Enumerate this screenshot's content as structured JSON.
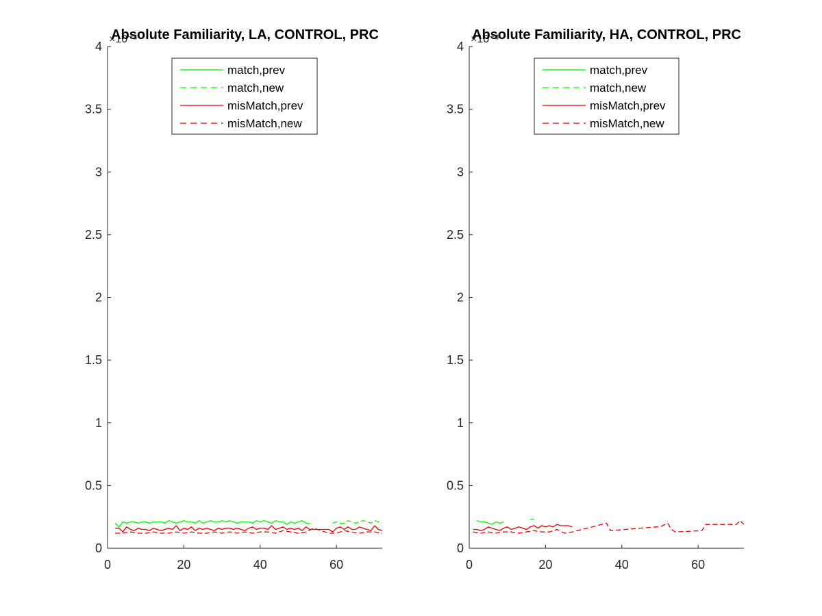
{
  "chart_data": [
    {
      "type": "line",
      "title": "Absolute Familiarity, LA, CONTROL, PRC",
      "xlabel": "",
      "ylabel": "",
      "xlim": [
        0,
        72
      ],
      "ylim": [
        0,
        4
      ],
      "y_exponent_label": "×10⁻³",
      "xticks": [
        "0",
        "20",
        "40",
        "60"
      ],
      "xtick_values": [
        0,
        20,
        40,
        60
      ],
      "yticks": [
        "0",
        "0.5",
        "1",
        "1.5",
        "2",
        "2.5",
        "3",
        "3.5",
        "4"
      ],
      "ytick_values": [
        0,
        0.5,
        1,
        1.5,
        2,
        2.5,
        3,
        3.5,
        4
      ],
      "grid": false,
      "legend_position": "top-center",
      "series": [
        {
          "name": "match,prev",
          "color": "#00ff00",
          "style": "solid",
          "x": [
            2,
            3,
            4,
            5,
            6,
            7,
            8,
            9,
            10,
            11,
            12,
            13,
            14,
            15,
            16,
            17,
            18,
            19,
            20,
            21,
            22,
            23,
            24,
            25,
            26,
            27,
            28,
            29,
            30,
            31,
            32,
            33,
            34,
            35,
            36,
            37,
            38,
            39,
            40,
            41,
            42,
            43,
            44,
            45,
            46,
            47,
            48,
            49,
            50,
            51,
            52,
            53
          ],
          "y": [
            0.2,
            0.17,
            0.21,
            0.2,
            0.21,
            0.21,
            0.2,
            0.21,
            0.21,
            0.2,
            0.21,
            0.21,
            0.21,
            0.2,
            0.22,
            0.21,
            0.2,
            0.21,
            0.22,
            0.21,
            0.21,
            0.2,
            0.22,
            0.2,
            0.21,
            0.22,
            0.21,
            0.21,
            0.22,
            0.21,
            0.22,
            0.21,
            0.2,
            0.21,
            0.21,
            0.21,
            0.2,
            0.22,
            0.21,
            0.22,
            0.21,
            0.2,
            0.22,
            0.21,
            0.21,
            0.19,
            0.21,
            0.2,
            0.21,
            0.22,
            0.2,
            0.2
          ]
        },
        {
          "name": "match,new",
          "color": "#00ff00",
          "style": "dashed",
          "x": [
            59,
            60,
            61,
            62,
            63,
            64,
            65,
            66,
            67,
            68,
            69,
            70,
            71,
            72
          ],
          "y": [
            0.2,
            0.21,
            0.2,
            0.2,
            0.22,
            0.21,
            0.2,
            0.21,
            0.22,
            0.21,
            0.2,
            0.22,
            0.21,
            0.2
          ]
        },
        {
          "name": "misMatch,prev",
          "color": "#e60000",
          "style": "solid",
          "x": [
            2,
            3,
            4,
            5,
            6,
            7,
            8,
            9,
            10,
            11,
            12,
            13,
            14,
            15,
            16,
            17,
            18,
            19,
            20,
            21,
            22,
            23,
            24,
            25,
            26,
            27,
            28,
            29,
            30,
            31,
            32,
            33,
            34,
            35,
            36,
            37,
            38,
            39,
            40,
            41,
            42,
            43,
            44,
            45,
            46,
            47,
            48,
            49,
            50,
            51,
            52,
            53,
            58,
            59,
            60,
            61,
            62,
            63,
            64,
            65,
            66,
            67,
            68,
            69,
            70,
            71,
            72
          ],
          "y": [
            0.16,
            0.16,
            0.13,
            0.17,
            0.15,
            0.14,
            0.16,
            0.15,
            0.15,
            0.14,
            0.16,
            0.15,
            0.14,
            0.15,
            0.16,
            0.15,
            0.18,
            0.14,
            0.16,
            0.15,
            0.17,
            0.14,
            0.16,
            0.15,
            0.16,
            0.15,
            0.14,
            0.16,
            0.15,
            0.16,
            0.16,
            0.15,
            0.16,
            0.15,
            0.14,
            0.16,
            0.17,
            0.15,
            0.16,
            0.16,
            0.15,
            0.18,
            0.15,
            0.16,
            0.17,
            0.15,
            0.16,
            0.15,
            0.16,
            0.14,
            0.17,
            0.15,
            0.15,
            0.13,
            0.16,
            0.17,
            0.15,
            0.17,
            0.15,
            0.15,
            0.17,
            0.16,
            0.15,
            0.14,
            0.18,
            0.15,
            0.14
          ]
        },
        {
          "name": "misMatch,new",
          "color": "#e60000",
          "style": "dashed",
          "x": [
            2,
            4,
            6,
            8,
            10,
            12,
            14,
            16,
            18,
            20,
            22,
            24,
            26,
            28,
            30,
            32,
            34,
            36,
            38,
            40,
            42,
            44,
            46,
            48,
            50,
            52,
            54,
            56,
            58,
            60,
            62,
            64,
            66,
            68,
            70,
            72
          ],
          "y": [
            0.12,
            0.12,
            0.13,
            0.12,
            0.12,
            0.13,
            0.12,
            0.12,
            0.13,
            0.12,
            0.13,
            0.12,
            0.12,
            0.13,
            0.12,
            0.13,
            0.12,
            0.13,
            0.12,
            0.13,
            0.13,
            0.12,
            0.14,
            0.13,
            0.12,
            0.13,
            0.16,
            0.14,
            0.12,
            0.12,
            0.14,
            0.13,
            0.12,
            0.13,
            0.13,
            0.12
          ]
        }
      ]
    },
    {
      "type": "line",
      "title": "Absolute Familiarity, HA, CONTROL, PRC",
      "xlabel": "",
      "ylabel": "",
      "xlim": [
        0,
        72
      ],
      "ylim": [
        0,
        4
      ],
      "y_exponent_label": "×10⁻³",
      "xticks": [
        "0",
        "20",
        "40",
        "60"
      ],
      "xtick_values": [
        0,
        20,
        40,
        60
      ],
      "yticks": [
        "0",
        "0.5",
        "1",
        "1.5",
        "2",
        "2.5",
        "3",
        "3.5",
        "4"
      ],
      "ytick_values": [
        0,
        0.5,
        1,
        1.5,
        2,
        2.5,
        3,
        3.5,
        4
      ],
      "grid": false,
      "legend_position": "top-center",
      "series": [
        {
          "name": "match,prev",
          "color": "#00ff00",
          "style": "solid",
          "x": [
            2,
            3,
            4,
            5,
            6,
            7,
            8,
            9
          ],
          "y": [
            0.22,
            0.21,
            0.21,
            0.2,
            0.19,
            0.21,
            0.2,
            0.21
          ]
        },
        {
          "name": "match,new",
          "color": "#00ff00",
          "style": "dashed",
          "x": [
            16,
            17
          ],
          "y": [
            0.23,
            0.23
          ]
        },
        {
          "name": "misMatch,prev",
          "color": "#e60000",
          "style": "solid",
          "x": [
            1,
            2,
            3,
            4,
            5,
            6,
            7,
            8,
            9,
            10,
            11,
            12,
            13,
            14,
            15,
            16,
            17,
            18,
            19,
            20,
            21,
            22,
            23,
            24,
            25,
            26,
            27
          ],
          "y": [
            0.15,
            0.15,
            0.14,
            0.15,
            0.17,
            0.16,
            0.15,
            0.14,
            0.16,
            0.17,
            0.15,
            0.16,
            0.17,
            0.16,
            0.15,
            0.17,
            0.18,
            0.16,
            0.18,
            0.17,
            0.18,
            0.17,
            0.19,
            0.18,
            0.18,
            0.18,
            0.17
          ]
        },
        {
          "name": "misMatch,new",
          "color": "#e60000",
          "style": "dashed",
          "x": [
            1,
            3,
            5,
            7,
            9,
            11,
            13,
            15,
            17,
            19,
            21,
            23,
            25,
            27,
            36,
            37,
            49,
            50,
            52,
            53,
            54,
            61,
            62,
            70,
            71,
            72
          ],
          "y": [
            0.13,
            0.12,
            0.13,
            0.12,
            0.13,
            0.13,
            0.12,
            0.13,
            0.14,
            0.13,
            0.13,
            0.15,
            0.12,
            0.13,
            0.2,
            0.14,
            0.17,
            0.17,
            0.2,
            0.15,
            0.13,
            0.14,
            0.19,
            0.19,
            0.22,
            0.19
          ]
        }
      ]
    }
  ]
}
